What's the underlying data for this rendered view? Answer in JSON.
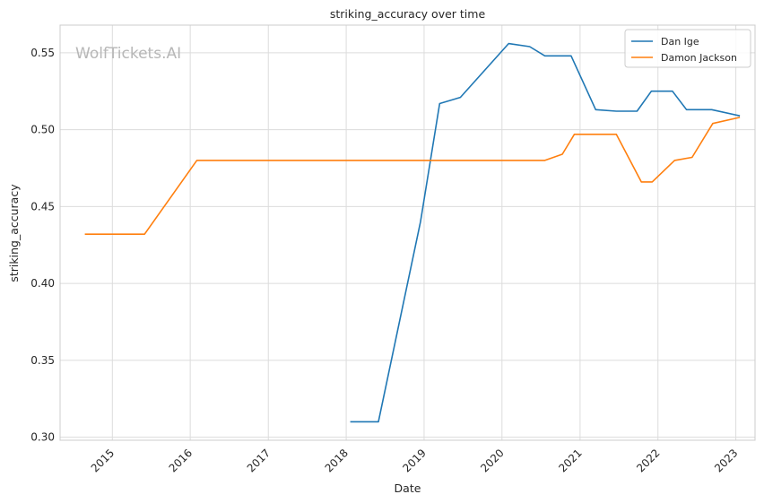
{
  "chart_data": {
    "type": "line",
    "title": "striking_accuracy over time",
    "xlabel": "Date",
    "ylabel": "striking_accuracy",
    "watermark": "WolfTickets.AI",
    "x_type": "date",
    "xlim": [
      "2014-05-01",
      "2023-04-01"
    ],
    "ylim": [
      0.298,
      0.568
    ],
    "x_ticks": [
      "2015",
      "2016",
      "2017",
      "2018",
      "2019",
      "2020",
      "2021",
      "2022",
      "2023"
    ],
    "y_ticks": [
      "0.30",
      "0.35",
      "0.40",
      "0.45",
      "0.50",
      "0.55"
    ],
    "grid": true,
    "legend_position": "top-right",
    "series": [
      {
        "name": "Dan Ige",
        "color": "#1f77b4",
        "points": [
          [
            "2018-01-20",
            0.31
          ],
          [
            "2018-06-01",
            0.31
          ],
          [
            "2018-12-15",
            0.44
          ],
          [
            "2019-03-15",
            0.517
          ],
          [
            "2019-06-20",
            0.521
          ],
          [
            "2020-02-01",
            0.556
          ],
          [
            "2020-05-10",
            0.554
          ],
          [
            "2020-07-20",
            0.548
          ],
          [
            "2020-11-20",
            0.548
          ],
          [
            "2021-03-15",
            0.513
          ],
          [
            "2021-06-20",
            0.512
          ],
          [
            "2021-09-25",
            0.512
          ],
          [
            "2021-12-01",
            0.525
          ],
          [
            "2022-03-10",
            0.525
          ],
          [
            "2022-05-15",
            0.513
          ],
          [
            "2022-09-10",
            0.513
          ],
          [
            "2023-01-20",
            0.509
          ]
        ]
      },
      {
        "name": "Damon Jackson",
        "color": "#ff7f0e",
        "points": [
          [
            "2014-08-25",
            0.432
          ],
          [
            "2015-06-01",
            0.432
          ],
          [
            "2016-02-01",
            0.48
          ],
          [
            "2020-07-20",
            0.48
          ],
          [
            "2020-10-10",
            0.484
          ],
          [
            "2020-12-05",
            0.497
          ],
          [
            "2021-06-20",
            0.497
          ],
          [
            "2021-10-15",
            0.466
          ],
          [
            "2021-12-05",
            0.466
          ],
          [
            "2022-03-20",
            0.48
          ],
          [
            "2022-06-10",
            0.482
          ],
          [
            "2022-09-15",
            0.504
          ],
          [
            "2023-01-20",
            0.508
          ]
        ]
      }
    ]
  }
}
